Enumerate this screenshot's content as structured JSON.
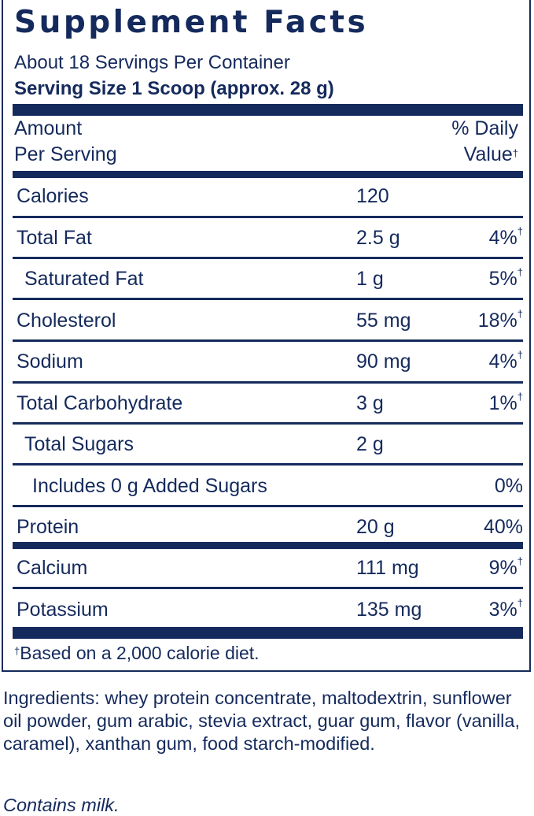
{
  "title": "Supplement Facts",
  "servings_per_container": "About 18 Servings Per Container",
  "serving_size": "Serving Size 1 Scoop (approx. 28 g)",
  "header": {
    "amount_line1": "Amount",
    "amount_line2": "Per Serving",
    "dv_line1": "% Daily",
    "dv_line2": "Value",
    "dagger": "†"
  },
  "nutrients": [
    {
      "name": "Calories",
      "amount": "120",
      "dv": ""
    },
    {
      "name": "Total Fat",
      "amount": "2.5 g",
      "dv": "4%"
    },
    {
      "name": "Saturated Fat",
      "amount": "1 g",
      "dv": "5%"
    },
    {
      "name": "Cholesterol",
      "amount": "55 mg",
      "dv": "18%"
    },
    {
      "name": "Sodium",
      "amount": "90 mg",
      "dv": "4%"
    },
    {
      "name": "Total Carbohydrate",
      "amount": "3 g",
      "dv": "1%"
    },
    {
      "name": "Total Sugars",
      "amount": "2 g",
      "dv": ""
    },
    {
      "name": "Includes 0 g Added Sugars",
      "amount": "",
      "dv": "0%"
    },
    {
      "name": "Protein",
      "amount": "20 g",
      "dv": "40%"
    },
    {
      "name": "Calcium",
      "amount": "111 mg",
      "dv": "9%"
    },
    {
      "name": "Potassium",
      "amount": "135 mg",
      "dv": "3%"
    }
  ],
  "footnote": {
    "dagger": "†",
    "text": "Based on a 2,000 calorie diet."
  },
  "ingredients": "Ingredients: whey protein concentrate, maltodextrin, sunflower oil powder, gum arabic, stevia extract, guar gum, flavor (vanilla, caramel), xanthan gum, food starch-modified.",
  "allergen": "Contains milk.",
  "colors": {
    "ink": "#152a5c"
  }
}
